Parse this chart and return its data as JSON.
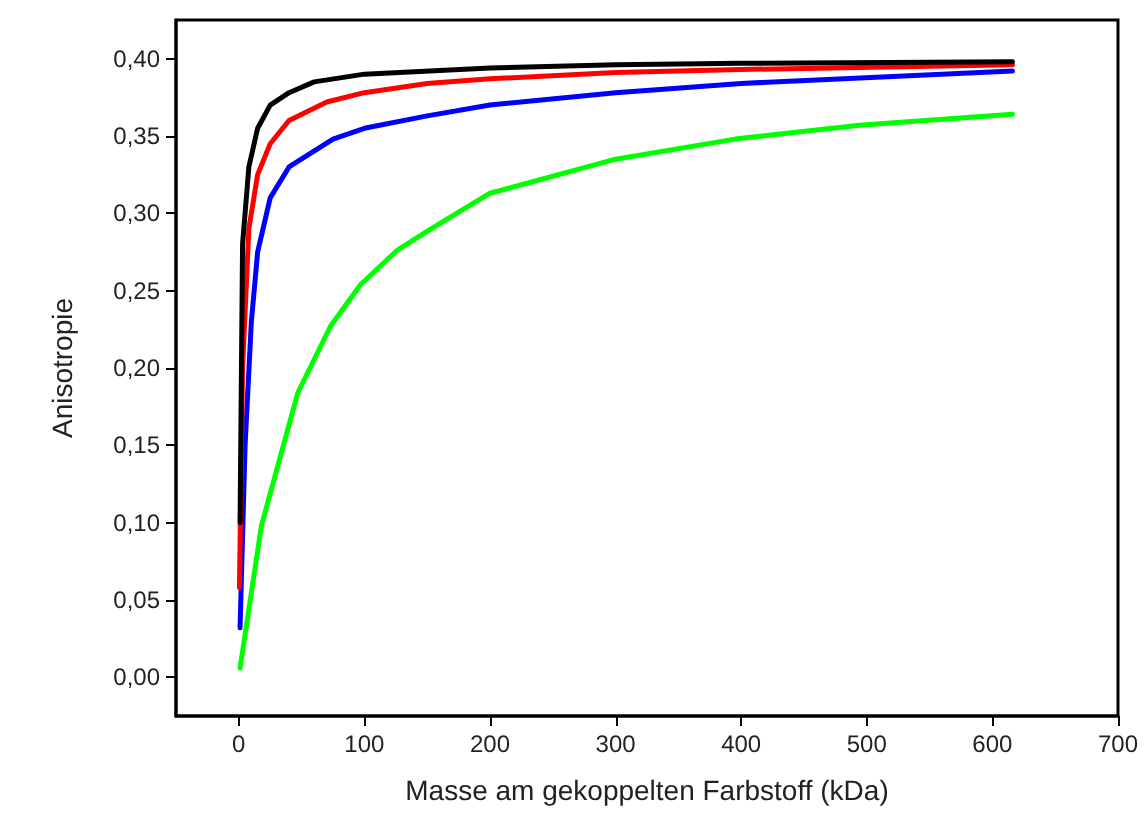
{
  "chart_data": {
    "type": "line",
    "xlabel": "Masse am gekoppelten Farbstoff (kDa)",
    "ylabel": "Anisotropie",
    "xlim": [
      -50,
      700
    ],
    "xticks": [
      0,
      100,
      200,
      300,
      400,
      500,
      600,
      700
    ],
    "ylim": [
      -0.025,
      0.425
    ],
    "yticks": [
      {
        "value": 0,
        "label": "0,00"
      },
      {
        "value": 0.05,
        "label": "0,05"
      },
      {
        "value": 0.1,
        "label": "0,10"
      },
      {
        "value": 0.15,
        "label": "0,15"
      },
      {
        "value": 0.2,
        "label": "0,20"
      },
      {
        "value": 0.25,
        "label": "0,25"
      },
      {
        "value": 0.3,
        "label": "0,30"
      },
      {
        "value": 0.35,
        "label": "0,35"
      },
      {
        "value": 0.4,
        "label": "0,40"
      }
    ],
    "marker": "none",
    "line_style": "solid",
    "series": [
      {
        "color": "#000000",
        "x": [
          1,
          3,
          8,
          15,
          25,
          40,
          60,
          100,
          200,
          300,
          400,
          616
        ],
        "values": [
          0.1,
          0.28,
          0.33,
          0.355,
          0.37,
          0.378,
          0.385,
          0.39,
          0.394,
          0.396,
          0.397,
          0.398
        ]
      },
      {
        "color": "#ff0000",
        "x": [
          0.5,
          3,
          8,
          15,
          25,
          40,
          70,
          100,
          150,
          200,
          300,
          400,
          616
        ],
        "values": [
          0.058,
          0.2,
          0.29,
          0.325,
          0.345,
          0.36,
          0.372,
          0.378,
          0.384,
          0.387,
          0.391,
          0.393,
          0.396
        ]
      },
      {
        "color": "#0000ff",
        "x": [
          1,
          5,
          10,
          15,
          25,
          40,
          75,
          100,
          150,
          200,
          300,
          400,
          616
        ],
        "values": [
          0.032,
          0.15,
          0.23,
          0.275,
          0.31,
          0.33,
          0.348,
          0.355,
          0.363,
          0.37,
          0.378,
          0.384,
          0.392
        ]
      },
      {
        "color": "#00ff00",
        "x": [
          1,
          18,
          47,
          73,
          97,
          126,
          153,
          200,
          300,
          395,
          494,
          616
        ],
        "values": [
          0.006,
          0.098,
          0.184,
          0.227,
          0.254,
          0.276,
          0.29,
          0.313,
          0.335,
          0.348,
          0.357,
          0.364
        ]
      }
    ]
  }
}
